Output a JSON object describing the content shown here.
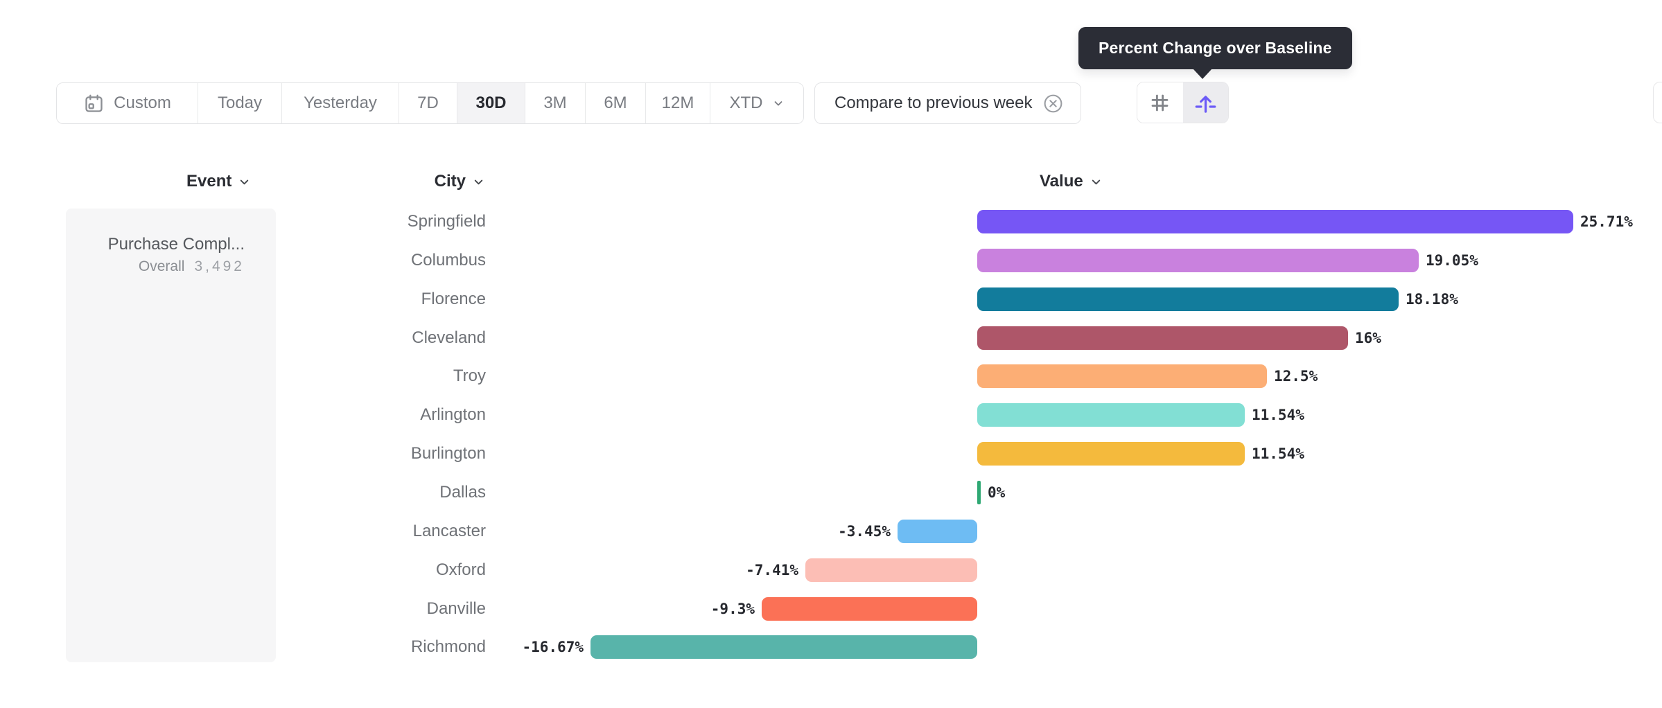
{
  "header": {
    "tooltip": "Percent Change over Baseline"
  },
  "toolbar": {
    "date_presets": [
      "Custom",
      "Today",
      "Yesterday",
      "7D",
      "30D",
      "3M",
      "6M",
      "12M",
      "XTD"
    ],
    "selected_preset": "30D",
    "compare_chip_label": "Compare to previous week",
    "view_toggle": {
      "options": [
        "number-format",
        "percent-change-over-baseline"
      ],
      "selected": "percent-change-over-baseline"
    }
  },
  "columns": {
    "event": "Event",
    "city": "City",
    "value": "Value"
  },
  "event_panel": {
    "name": "Purchase Compl...",
    "overall_label": "Overall",
    "overall_value": "3,492"
  },
  "chart_data": {
    "type": "bar",
    "orientation": "horizontal",
    "unit": "%",
    "baseline": 0,
    "xlim": [
      -16.67,
      25.71
    ],
    "grid": false,
    "legend": false,
    "categories": [
      "Springfield",
      "Columbus",
      "Florence",
      "Cleveland",
      "Troy",
      "Arlington",
      "Burlington",
      "Dallas",
      "Lancaster",
      "Oxford",
      "Danville",
      "Richmond"
    ],
    "values": [
      25.71,
      19.05,
      18.18,
      16,
      12.5,
      11.54,
      11.54,
      0,
      -3.45,
      -7.41,
      -9.3,
      -16.67
    ],
    "value_labels": [
      "25.71%",
      "19.05%",
      "18.18%",
      "16%",
      "12.5%",
      "11.54%",
      "11.54%",
      "0%",
      "-3.45%",
      "-7.41%",
      "-9.3%",
      "-16.67%"
    ],
    "bar_colors": [
      "#7656f5",
      "#c981de",
      "#127c9c",
      "#ae5669",
      "#fcae75",
      "#82dfd4",
      "#f4ba3d",
      "#2ea873",
      "#6ebcf3",
      "#fcbeb5",
      "#fb7156",
      "#58b4aa"
    ]
  },
  "colors": {
    "accent_purple": "#6c5bf7",
    "tooltip_bg": "#2b2d36",
    "zero_bar_green": "#2ea873",
    "selected_bg": "#f3f3f5",
    "border": "#e3e4e6"
  }
}
